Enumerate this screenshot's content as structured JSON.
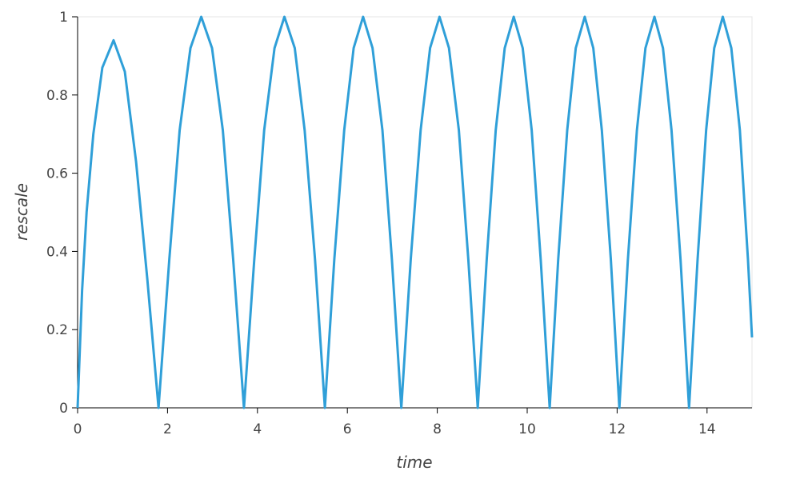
{
  "chart_data": {
    "type": "line",
    "x_label": "time",
    "y_label": "rescale",
    "color": "#2f9fd8",
    "x": [
      0,
      0.1,
      0.2,
      0.35,
      0.55,
      0.8,
      1.05,
      1.3,
      1.55,
      1.8,
      2.04,
      2.27,
      2.51,
      2.75,
      2.99,
      3.23,
      3.46,
      3.7,
      3.93,
      4.15,
      4.38,
      4.6,
      4.83,
      5.05,
      5.28,
      5.5,
      5.71,
      5.93,
      6.14,
      6.35,
      6.56,
      6.78,
      6.99,
      7.2,
      7.41,
      7.63,
      7.84,
      8.05,
      8.26,
      8.48,
      8.69,
      8.9,
      9.1,
      9.3,
      9.5,
      9.7,
      9.9,
      10.1,
      10.3,
      10.5,
      10.69,
      10.89,
      11.08,
      11.28,
      11.47,
      11.66,
      11.86,
      12.05,
      12.24,
      12.44,
      12.63,
      12.83,
      13.02,
      13.21,
      13.41,
      13.6,
      13.79,
      13.98,
      14.16,
      14.35,
      14.54,
      14.73,
      14.91,
      15
    ],
    "values": [
      0,
      0.3,
      0.5,
      0.7,
      0.87,
      0.94,
      0.86,
      0.63,
      0.33,
      0,
      0.38,
      0.71,
      0.92,
      1,
      0.92,
      0.71,
      0.38,
      0,
      0.38,
      0.71,
      0.92,
      1,
      0.92,
      0.71,
      0.38,
      0,
      0.38,
      0.71,
      0.92,
      1,
      0.92,
      0.71,
      0.38,
      0,
      0.38,
      0.71,
      0.92,
      1,
      0.92,
      0.71,
      0.38,
      0,
      0.38,
      0.71,
      0.92,
      1,
      0.92,
      0.71,
      0.38,
      0,
      0.38,
      0.71,
      0.92,
      1,
      0.92,
      0.71,
      0.38,
      0,
      0.38,
      0.71,
      0.92,
      1,
      0.92,
      0.71,
      0.38,
      0,
      0.38,
      0.71,
      0.92,
      1,
      0.92,
      0.71,
      0.38,
      0.18
    ],
    "xlim": [
      0,
      15
    ],
    "xticks": [
      0,
      2,
      4,
      6,
      8,
      10,
      12,
      14
    ],
    "ylim": [
      0,
      1
    ],
    "yticks": [
      0,
      0.2,
      0.4,
      0.6,
      0.8,
      1
    ]
  }
}
